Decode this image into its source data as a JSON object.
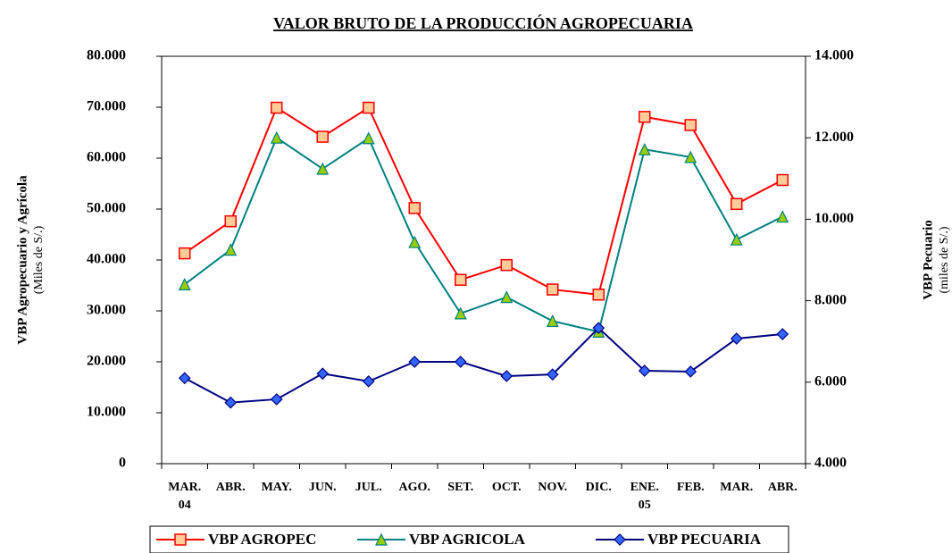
{
  "chart_data": {
    "type": "line",
    "title": "VALOR BRUTO DE LA PRODUCCIÓN AGROPECUARIA",
    "ylabel": "VBP Agropecuario y Agrícola",
    "ylabel_sub": "(Miles de S/.)",
    "y2label": "VBP Pecuario",
    "y2label_sub": "(miles de S/.)",
    "categories": [
      "MAR.\n04",
      "ABR.",
      "MAY.",
      "JUN.",
      "JUL.",
      "AGO.",
      "SET.",
      "OCT.",
      "NOV.",
      "DIC.",
      "ENE.\n05",
      "FEB.",
      "MAR.",
      "ABR."
    ],
    "ylim": [
      0,
      80000
    ],
    "yticks": [
      0,
      {
        "value": 10000,
        "label": "10.000"
      },
      {
        "value": 20000,
        "label": "20.000"
      },
      {
        "value": 30000,
        "label": "30.000"
      },
      {
        "value": 40000,
        "label": "40.000"
      },
      {
        "value": 50000,
        "label": "50.000"
      },
      {
        "value": 60000,
        "label": "60.000"
      },
      {
        "value": 70000,
        "label": "70.000"
      },
      {
        "value": 80000,
        "label": "80.000"
      }
    ],
    "y2lim": [
      4000,
      14000
    ],
    "y2ticks": [
      {
        "value": 4000,
        "label": "4.000"
      },
      {
        "value": 6000,
        "label": "6.000"
      },
      {
        "value": 8000,
        "label": "8.000"
      },
      {
        "value": 10000,
        "label": "10.000"
      },
      {
        "value": 12000,
        "label": "12.000"
      },
      {
        "value": 14000,
        "label": "14.000"
      }
    ],
    "legend": "bottom",
    "series": [
      {
        "name": "VBP AGROPEC",
        "color": "#ff0000",
        "marker": "square",
        "marker_color": "#ffcc99",
        "values": [
          41300,
          47600,
          69900,
          64200,
          69900,
          50200,
          36100,
          39000,
          34200,
          33200,
          68100,
          66500,
          51000,
          55700
        ]
      },
      {
        "name": "VBP AGRICOLA",
        "color": "#008080",
        "marker": "triangle",
        "marker_color": "#99cc00",
        "values": [
          35200,
          42000,
          64000,
          57900,
          63900,
          43500,
          29500,
          32700,
          28000,
          25900,
          61700,
          60200,
          44000,
          48500
        ]
      },
      {
        "name": "VBP PECUARIA",
        "color": "#000080",
        "marker": "diamond",
        "marker_color": "#3366ff",
        "axis": "y2",
        "values": [
          6100,
          5500,
          5580,
          6210,
          6020,
          6500,
          6500,
          6150,
          6190,
          7330,
          6280,
          6260,
          7070,
          7180
        ]
      }
    ]
  }
}
